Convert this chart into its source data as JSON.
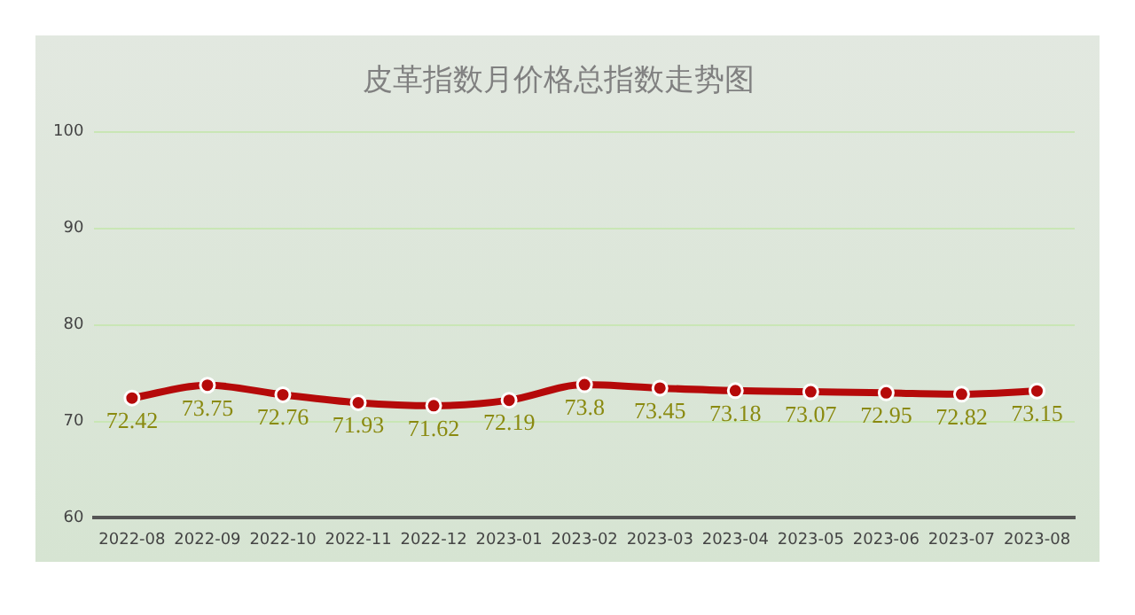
{
  "chart_data": {
    "type": "line",
    "title": "皮革指数月价格总指数走势图",
    "categories": [
      "2022-08",
      "2022-09",
      "2022-10",
      "2022-11",
      "2022-12",
      "2023-01",
      "2023-02",
      "2023-03",
      "2023-04",
      "2023-05",
      "2023-06",
      "2023-07",
      "2023-08"
    ],
    "series": [
      {
        "color": "#b50a0a",
        "values": [
          72.42,
          73.75,
          72.76,
          71.93,
          71.62,
          72.19,
          73.8,
          73.45,
          73.18,
          73.07,
          72.95,
          72.82,
          73.15
        ]
      }
    ],
    "ylim": [
      60,
      100
    ],
    "yticks": [
      60,
      70,
      80,
      90,
      100
    ],
    "grid": "y",
    "marker": "circle",
    "data_labels": true,
    "legend": false
  }
}
